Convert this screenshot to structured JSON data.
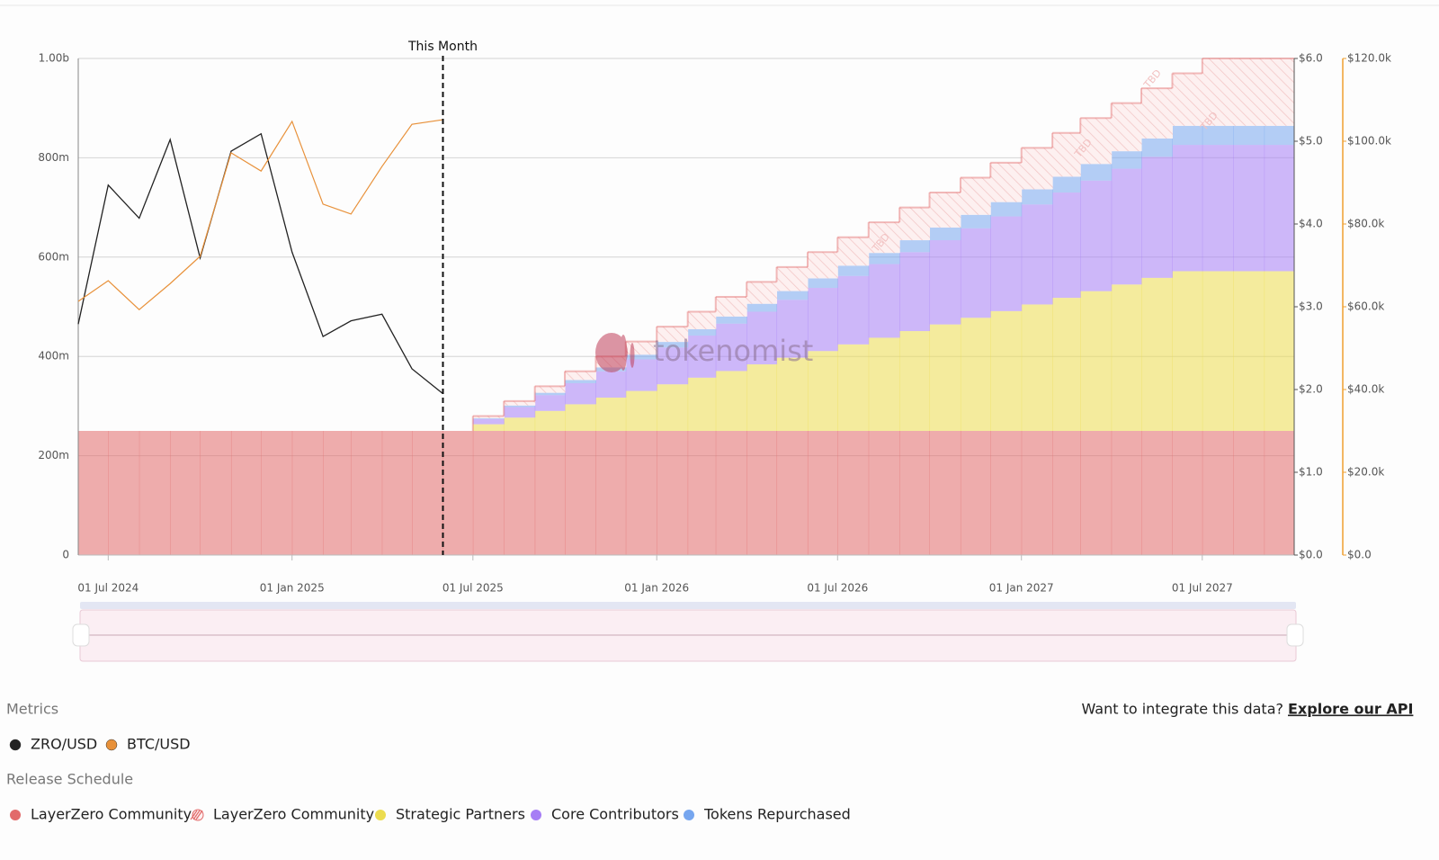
{
  "chart_data": {
    "type": "stacked-step-area-with-lines",
    "xlim": [
      "2024-06-01",
      "2027-10-01"
    ],
    "xticks": [
      {
        "value": "2024-07-01",
        "label": "01 Jul 2024"
      },
      {
        "value": "2025-01-01",
        "label": "01 Jan 2025"
      },
      {
        "value": "2025-07-01",
        "label": "01 Jul 2025"
      },
      {
        "value": "2026-01-01",
        "label": "01 Jan 2026"
      },
      {
        "value": "2026-07-01",
        "label": "01 Jul 2026"
      },
      {
        "value": "2027-01-01",
        "label": "01 Jan 2027"
      },
      {
        "value": "2027-07-01",
        "label": "01 Jul 2027"
      }
    ],
    "ylim": [
      0,
      1000
    ],
    "yticks": [
      0,
      {
        "value": 200,
        "label": "200m"
      },
      {
        "value": 400,
        "label": "400m"
      },
      {
        "value": 600,
        "label": "600m"
      },
      {
        "value": 800,
        "label": "800m"
      },
      {
        "value": 1000,
        "label": "1.00b"
      }
    ],
    "y2lim": [
      0,
      6
    ],
    "y2ticks": [
      {
        "value": 0,
        "label": "$0.0"
      },
      {
        "value": 1,
        "label": "$1.0"
      },
      {
        "value": 2,
        "label": "$2.0"
      },
      {
        "value": 3,
        "label": "$3.0"
      },
      {
        "value": 4,
        "label": "$4.0"
      },
      {
        "value": 5,
        "label": "$5.0"
      },
      {
        "value": 6,
        "label": "$6.0"
      }
    ],
    "y3lim": [
      0,
      120000
    ],
    "y3ticks": [
      {
        "value": 0,
        "label": "$0.0"
      },
      {
        "value": 20000,
        "label": "$20.0k"
      },
      {
        "value": 40000,
        "label": "$40.0k"
      },
      {
        "value": 60000,
        "label": "$60.0k"
      },
      {
        "value": 80000,
        "label": "$80.0k"
      },
      {
        "value": 100000,
        "label": "$100.0k"
      },
      {
        "value": 120000,
        "label": "$120.0k"
      }
    ],
    "y3color": "#f0a030",
    "grid": true,
    "annotation": {
      "label": "This Month",
      "x": "2025-06-01"
    },
    "watermark": "tokenomist",
    "hatch_label": "TBD",
    "metrics_title": "Metrics",
    "schedule_title": "Release Schedule",
    "api_text": "Want to integrate this data?",
    "api_link": "Explore our API",
    "lines": {
      "x": [
        "2024-06-01",
        "2024-07-01",
        "2024-08-01",
        "2024-09-01",
        "2024-10-01",
        "2024-11-01",
        "2024-12-01",
        "2025-01-01",
        "2025-02-01",
        "2025-03-01",
        "2025-04-01",
        "2025-05-01",
        "2025-06-01"
      ],
      "series": [
        {
          "name": "ZRO/USD",
          "color": "#222222",
          "axis": "y2",
          "values": [
            2.79,
            4.47,
            4.07,
            5.02,
            3.59,
            4.88,
            5.09,
            3.66,
            2.64,
            2.83,
            2.91,
            2.25,
            1.95
          ]
        },
        {
          "name": "BTC/USD",
          "color": "#e8913a",
          "axis": "y3",
          "values": [
            61300,
            66300,
            59300,
            65600,
            72200,
            97200,
            92800,
            104800,
            84800,
            82400,
            93900,
            104100,
            105200
          ]
        }
      ]
    },
    "schedule": {
      "x": [
        "2024-06-01",
        "2024-07-01",
        "2024-08-01",
        "2024-09-01",
        "2024-10-01",
        "2024-11-01",
        "2024-12-01",
        "2025-01-01",
        "2025-02-01",
        "2025-03-01",
        "2025-04-01",
        "2025-05-01",
        "2025-06-01",
        "2025-07-01",
        "2025-08-01",
        "2025-09-01",
        "2025-10-01",
        "2025-11-01",
        "2025-12-01",
        "2026-01-01",
        "2026-02-01",
        "2026-03-01",
        "2026-04-01",
        "2026-05-01",
        "2026-06-01",
        "2026-07-01",
        "2026-08-01",
        "2026-09-01",
        "2026-10-01",
        "2026-11-01",
        "2026-12-01",
        "2027-01-01",
        "2027-02-01",
        "2027-03-01",
        "2027-04-01",
        "2027-05-01",
        "2027-06-01",
        "2027-07-01",
        "2027-08-01",
        "2027-09-01"
      ],
      "series": [
        {
          "name": "LayerZero Community",
          "color": "#e26a6a",
          "values": [
            250,
            250,
            250,
            250,
            250,
            250,
            250,
            250,
            250,
            250,
            250,
            250,
            250,
            250,
            250,
            250,
            250,
            250,
            250,
            250,
            250,
            250,
            250,
            250,
            250,
            250,
            250,
            250,
            250,
            250,
            250,
            250,
            250,
            250,
            250,
            250,
            250,
            250,
            250,
            250
          ]
        },
        {
          "name": "LayerZero Community",
          "color": "#e26a6a",
          "pattern": "hatch",
          "values": [
            0,
            0,
            0,
            0,
            0,
            0,
            0,
            0,
            0,
            0,
            0,
            0,
            0,
            4.4,
            8.8,
            13.2,
            17.6,
            22,
            26.4,
            30.8,
            35.2,
            39.6,
            44,
            48.4,
            52.8,
            57.2,
            61.6,
            66,
            70.4,
            74.8,
            79.2,
            83.6,
            88,
            92.4,
            96.8,
            101.2,
            105.6,
            135.6,
            135.6,
            135.6
          ]
        },
        {
          "name": "Strategic Partners",
          "color": "#ecdc4f",
          "values": [
            0,
            0,
            0,
            0,
            0,
            0,
            0,
            0,
            0,
            0,
            0,
            0,
            0,
            13.4,
            26.8,
            40.2,
            53.6,
            67,
            80.4,
            93.8,
            107.2,
            120.6,
            134,
            147.4,
            160.8,
            174.2,
            187.6,
            201,
            214.4,
            227.8,
            241.2,
            254.6,
            268,
            281.4,
            294.8,
            308.2,
            321.6,
            321.6,
            321.6,
            321.6
          ]
        },
        {
          "name": "Core Contributors",
          "color": "#a67ef5",
          "values": [
            0,
            0,
            0,
            0,
            0,
            0,
            0,
            0,
            0,
            0,
            0,
            0,
            0,
            10.6,
            21.2,
            31.8,
            42.4,
            53,
            63.6,
            74.2,
            84.8,
            95.4,
            106,
            116.6,
            127.2,
            137.8,
            148.4,
            159,
            169.6,
            180.2,
            190.8,
            201.4,
            212,
            222.6,
            233.2,
            243.8,
            254.4,
            254.4,
            254.4,
            254.4
          ]
        },
        {
          "name": "Tokens Repurchased",
          "color": "#76a6ef",
          "values": [
            0,
            0,
            0,
            0,
            0,
            0,
            0,
            0,
            0,
            0,
            0,
            0,
            0,
            1.6,
            3.2,
            4.8,
            6.4,
            8,
            9.6,
            11.2,
            12.8,
            14.4,
            16,
            17.6,
            19.2,
            20.8,
            22.4,
            24,
            25.6,
            27.2,
            28.8,
            30.4,
            32,
            33.6,
            35.2,
            36.8,
            38.4,
            38.4,
            38.4,
            38.4
          ]
        }
      ]
    }
  }
}
